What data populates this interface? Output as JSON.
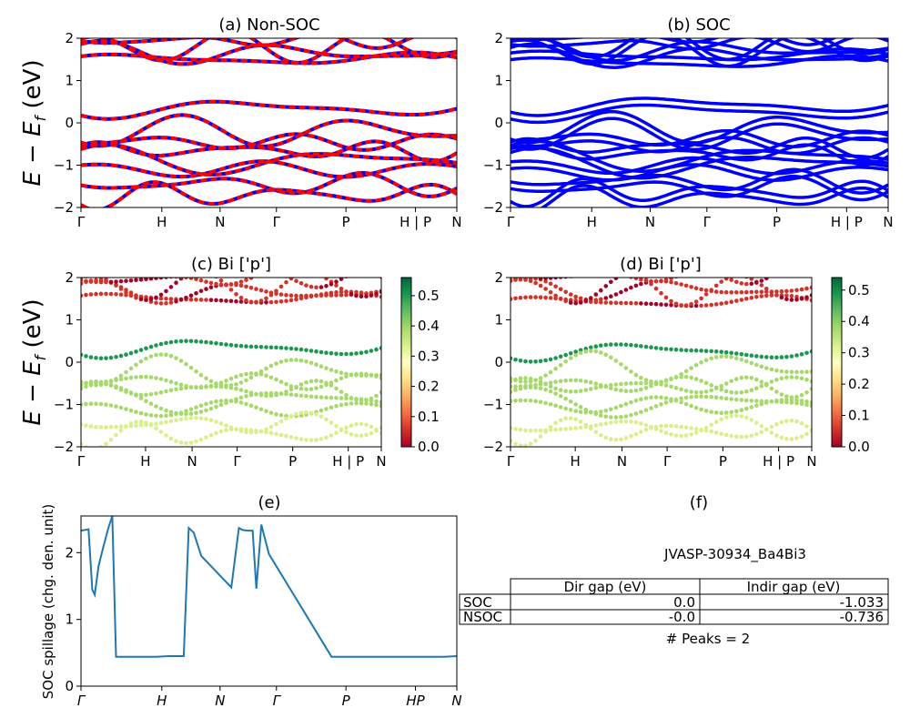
{
  "figure": {
    "band_ylabel": "E − E_f (eV)",
    "kpath": [
      "Γ",
      "H",
      "N",
      "Γ",
      "P",
      "H | P",
      "N"
    ],
    "kpath_italic": [
      "Γ",
      "H",
      "N",
      "Γ",
      "P",
      "HP",
      "N"
    ]
  },
  "chart_data": [
    {
      "id": "a",
      "type": "line",
      "title": "(a) Non-SOC",
      "ylim": [
        -2,
        2
      ],
      "yticks": [
        -2,
        -1,
        0,
        1,
        2
      ],
      "series": [
        {
          "color": "#ff0000",
          "style": "dashed-over-blue"
        }
      ],
      "colors": {
        "base": "#0000ff",
        "overlay": "#ff0000"
      }
    },
    {
      "id": "b",
      "type": "line",
      "title": "(b) SOC",
      "ylim": [
        -2,
        2
      ],
      "yticks": [
        -2,
        -1,
        0,
        1,
        2
      ],
      "colors": {
        "line": "#0000ff"
      }
    },
    {
      "id": "c",
      "type": "scatter",
      "title": "(c)  Bi ['p']",
      "ylim": [
        -2,
        2
      ],
      "yticks": [
        -2,
        -1,
        0,
        1,
        2
      ],
      "colorbar": {
        "min": 0.0,
        "max": 0.56,
        "ticks": [
          "0.0",
          "0.1",
          "0.2",
          "0.3",
          "0.4",
          "0.5"
        ],
        "colormap": "RdYlGn"
      }
    },
    {
      "id": "d",
      "type": "scatter",
      "title": "(d) Bi ['p']",
      "ylim": [
        -2,
        2
      ],
      "yticks": [
        -2,
        -1,
        0,
        1,
        2
      ],
      "colorbar": {
        "min": 0.0,
        "max": 0.54,
        "ticks": [
          "0.0",
          "0.1",
          "0.2",
          "0.3",
          "0.4",
          "0.5"
        ],
        "colormap": "RdYlGn"
      }
    },
    {
      "id": "e",
      "type": "line",
      "title": "(e)",
      "ylabel": "SOC spillage (chg. den. unit)",
      "ylim": [
        0,
        2.55
      ],
      "yticks": [
        "0",
        "1",
        "2"
      ],
      "color": "#1f77b4",
      "x": [
        0,
        0.03,
        0.045,
        0.055,
        0.07,
        0.09,
        0.11,
        0.125,
        0.14,
        0.2,
        0.3,
        0.35,
        0.37,
        0.39,
        0.41,
        0.43,
        0.45,
        0.48,
        0.6,
        0.63,
        0.645,
        0.665,
        0.685,
        0.7,
        0.72,
        0.75,
        1.0,
        1.2,
        1.45,
        1.5
      ],
      "y": [
        2.33,
        2.35,
        1.45,
        1.37,
        1.8,
        2.1,
        2.38,
        2.55,
        0.44,
        0.44,
        0.44,
        0.45,
        0.45,
        0.45,
        0.45,
        2.37,
        2.3,
        1.95,
        1.48,
        2.37,
        2.34,
        2.33,
        2.33,
        1.46,
        2.42,
        1.98,
        0.44,
        0.44,
        0.44,
        0.45
      ]
    }
  ],
  "panel_f": {
    "title": "(f)",
    "material": "JVASP-30934_Ba4Bi3",
    "columns": [
      "Dir gap (eV)",
      "Indir gap (eV)"
    ],
    "rows": [
      {
        "label": "SOC",
        "dir": "0.0",
        "indir": "-1.033"
      },
      {
        "label": "NSOC",
        "dir": "-0.0",
        "indir": "-0.736"
      }
    ],
    "peaks": "# Peaks = 2"
  }
}
